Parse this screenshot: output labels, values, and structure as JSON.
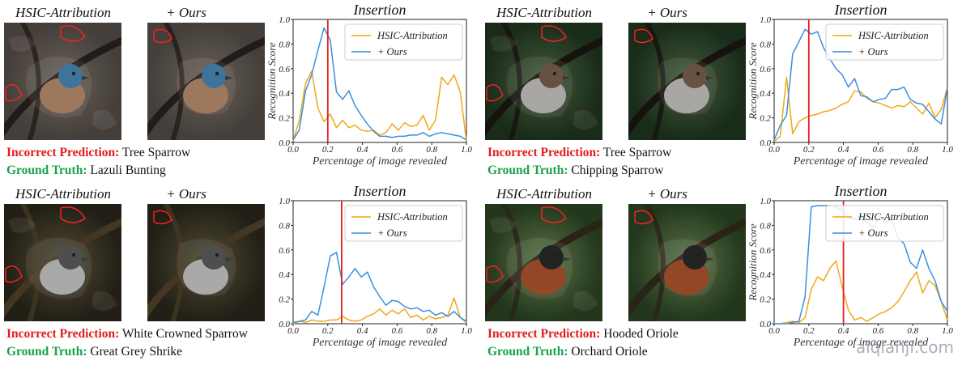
{
  "panels": [
    {
      "caption_left": "HSIC-Attribution",
      "caption_right": "+ Ours",
      "image_style": "bunting",
      "incorrect_label": "Incorrect Prediction:",
      "incorrect_value": "Tree Sparrow",
      "truth_label": "Ground Truth:",
      "truth_value": "Lazuli Bunting",
      "chart": {
        "title": "Insertion",
        "xlabel": "Percentage of image revealed",
        "ylabel": "Recognition Score",
        "vline": 0.2,
        "legend_pos": "top-right",
        "series": [
          {
            "name": "HSIC-Attribution",
            "color": "#f0a818",
            "y": [
              0.01,
              0.18,
              0.48,
              0.58,
              0.28,
              0.17,
              0.23,
              0.12,
              0.18,
              0.12,
              0.14,
              0.1,
              0.09,
              0.1,
              0.06,
              0.08,
              0.15,
              0.1,
              0.16,
              0.13,
              0.14,
              0.22,
              0.1,
              0.18,
              0.53,
              0.47,
              0.55,
              0.41,
              0.01
            ]
          },
          {
            "name": "+ Ours",
            "color": "#3b8fe0",
            "y": [
              0.02,
              0.1,
              0.42,
              0.55,
              0.75,
              0.93,
              0.83,
              0.41,
              0.35,
              0.42,
              0.3,
              0.22,
              0.15,
              0.09,
              0.05,
              0.05,
              0.04,
              0.05,
              0.05,
              0.06,
              0.06,
              0.08,
              0.05,
              0.07,
              0.08,
              0.07,
              0.06,
              0.05,
              0.02
            ]
          }
        ]
      }
    },
    {
      "caption_left": "HSIC-Attribution",
      "caption_right": "+ Ours",
      "image_style": "sparrow",
      "incorrect_label": "Incorrect Prediction:",
      "incorrect_value": "Tree Sparrow",
      "truth_label": "Ground Truth:",
      "truth_value": "Chipping Sparrow",
      "chart": {
        "title": "Insertion",
        "xlabel": "Percentage of image revealed",
        "ylabel": "Recognition Score",
        "vline": 0.2,
        "legend_pos": "top-right",
        "series": [
          {
            "name": "HSIC-Attribution",
            "color": "#f0a818",
            "y": [
              0.01,
              0.05,
              0.53,
              0.07,
              0.17,
              0.2,
              0.22,
              0.23,
              0.25,
              0.26,
              0.28,
              0.31,
              0.33,
              0.42,
              0.41,
              0.36,
              0.33,
              0.32,
              0.3,
              0.28,
              0.3,
              0.29,
              0.33,
              0.28,
              0.23,
              0.32,
              0.2,
              0.27,
              0.45
            ]
          },
          {
            "name": "+ Ours",
            "color": "#3b8fe0",
            "y": [
              0.02,
              0.14,
              0.22,
              0.72,
              0.82,
              0.92,
              0.88,
              0.9,
              0.77,
              0.68,
              0.6,
              0.55,
              0.45,
              0.52,
              0.38,
              0.37,
              0.33,
              0.35,
              0.36,
              0.43,
              0.43,
              0.45,
              0.35,
              0.32,
              0.31,
              0.25,
              0.19,
              0.15,
              0.45
            ]
          }
        ]
      }
    },
    {
      "caption_left": "HSIC-Attribution",
      "caption_right": "+ Ours",
      "image_style": "shrike",
      "incorrect_label": "Incorrect Prediction:",
      "incorrect_value": "White Crowned Sparrow",
      "truth_label": "Ground Truth:",
      "truth_value": "Great Grey Shrike",
      "chart": {
        "title": "Insertion",
        "xlabel": "Percentage of image revealed",
        "ylabel": "",
        "vline": 0.28,
        "legend_pos": "top-right",
        "series": [
          {
            "name": "HSIC-Attribution",
            "color": "#f0a818",
            "y": [
              0.0,
              0.02,
              0.01,
              0.03,
              0.02,
              0.02,
              0.03,
              0.03,
              0.06,
              0.03,
              0.02,
              0.03,
              0.06,
              0.08,
              0.12,
              0.07,
              0.11,
              0.08,
              0.12,
              0.05,
              0.07,
              0.03,
              0.06,
              0.04,
              0.05,
              0.07,
              0.21,
              0.05,
              0.01
            ]
          },
          {
            "name": "+ Ours",
            "color": "#3b8fe0",
            "y": [
              0.01,
              0.02,
              0.03,
              0.1,
              0.07,
              0.3,
              0.55,
              0.58,
              0.32,
              0.38,
              0.45,
              0.38,
              0.42,
              0.3,
              0.22,
              0.15,
              0.19,
              0.18,
              0.14,
              0.12,
              0.13,
              0.1,
              0.11,
              0.07,
              0.09,
              0.06,
              0.1,
              0.05,
              0.02
            ]
          }
        ]
      }
    },
    {
      "caption_left": "HSIC-Attribution",
      "caption_right": "+ Ours",
      "image_style": "oriole",
      "incorrect_label": "Incorrect Prediction:",
      "incorrect_value": "Hooded Oriole",
      "truth_label": "Ground Truth:",
      "truth_value": "Orchard Oriole",
      "chart": {
        "title": "Insertion",
        "xlabel": "Percentage of image revealed",
        "ylabel": "Recognition Score",
        "vline": 0.4,
        "legend_pos": "top-right",
        "series": [
          {
            "name": "HSIC-Attribution",
            "color": "#f0a818",
            "y": [
              0.0,
              0.0,
              0.01,
              0.02,
              0.01,
              0.05,
              0.28,
              0.38,
              0.35,
              0.45,
              0.51,
              0.3,
              0.11,
              0.03,
              0.05,
              0.02,
              0.05,
              0.08,
              0.1,
              0.13,
              0.18,
              0.26,
              0.35,
              0.42,
              0.25,
              0.35,
              0.31,
              0.18,
              0.03
            ]
          },
          {
            "name": "+ Ours",
            "color": "#3b8fe0",
            "y": [
              0.0,
              0.0,
              0.0,
              0.01,
              0.02,
              0.22,
              0.95,
              0.96,
              0.96,
              0.96,
              0.95,
              0.92,
              0.86,
              0.85,
              0.88,
              0.82,
              0.78,
              0.88,
              0.82,
              0.85,
              0.7,
              0.65,
              0.5,
              0.45,
              0.6,
              0.45,
              0.35,
              0.18,
              0.1
            ]
          }
        ]
      }
    }
  ],
  "watermark": "aiqianji.com"
}
